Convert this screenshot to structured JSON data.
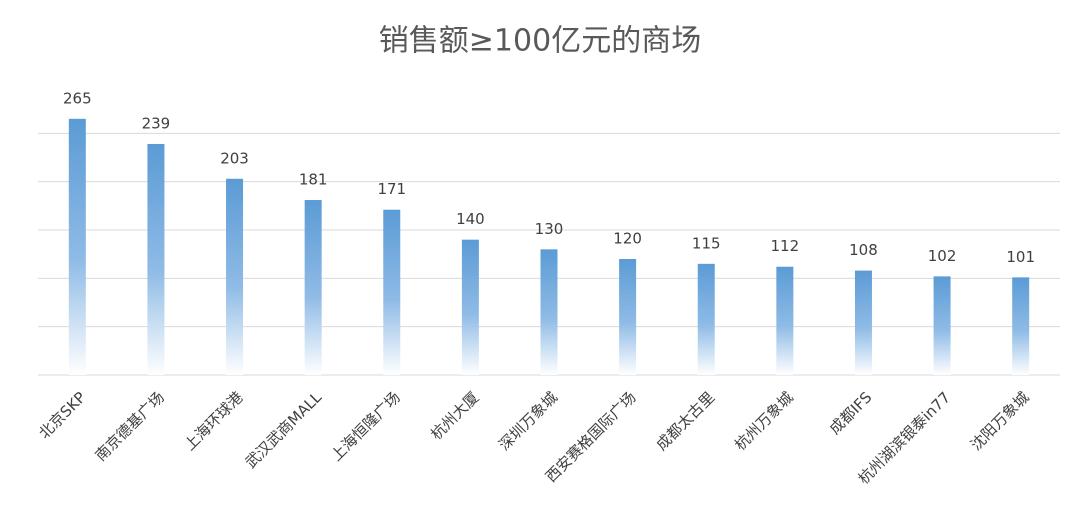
{
  "chart_data": {
    "type": "bar",
    "title": "销售额≥100亿元的商场",
    "categories": [
      "北京SKP",
      "南京德基广场",
      "上海环球港",
      "武汉武商MALL",
      "上海恒隆广场",
      "杭州大厦",
      "深圳万象城",
      "西安赛格国际广场",
      "成都太古里",
      "杭州万象城",
      "成都IFS",
      "杭州湖滨银泰in77",
      "沈阳万象城"
    ],
    "values": [
      265,
      239,
      203,
      181,
      171,
      140,
      130,
      120,
      115,
      112,
      108,
      102,
      101
    ],
    "color": "#5b9bd5",
    "ylim": [
      0,
      300
    ],
    "grid_values": [
      50,
      100,
      150,
      200,
      250
    ],
    "grid": true
  }
}
